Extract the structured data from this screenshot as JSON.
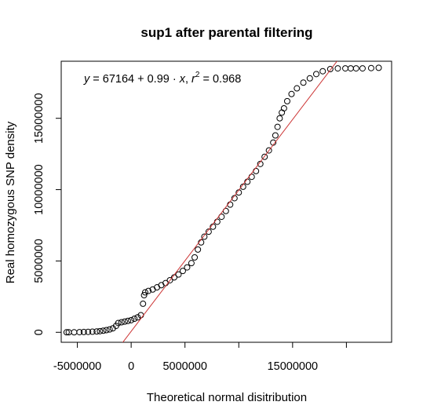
{
  "chart_data": {
    "type": "scatter",
    "title": "sup1 after parental filtering",
    "xlabel": "Theoretical normal disitribution",
    "ylabel": "Real homozygous SNP density",
    "xlim": [
      -6500000,
      24200000
    ],
    "ylim": [
      -700000,
      19000000
    ],
    "x_ticks": [
      -5000000,
      0,
      5000000,
      10000000,
      15000000,
      20000000
    ],
    "x_tick_labels": [
      "-5000000",
      "0",
      "5000000",
      "",
      "15000000",
      ""
    ],
    "y_ticks": [
      0,
      5000000,
      10000000,
      15000000
    ],
    "y_tick_labels": [
      "0",
      "5000000",
      "10000000",
      "15000000"
    ],
    "grid": false,
    "regression": {
      "intercept": 67164,
      "slope": 0.99,
      "r2": 0.968,
      "color": "#cc3333",
      "label": {
        "y": "y",
        "eq": " = 67164 + 0.99 · ",
        "x": "x",
        "comma": ",  ",
        "r": "r",
        "sup": "2",
        "rest": " = 0.968"
      }
    },
    "series": [
      {
        "marker": "open-circle",
        "color": "#000000",
        "points": [
          [
            -6000000,
            0
          ],
          [
            -5800000,
            0
          ],
          [
            -5300000,
            0
          ],
          [
            -4800000,
            10000
          ],
          [
            -4400000,
            20000
          ],
          [
            -4000000,
            30000
          ],
          [
            -3600000,
            40000
          ],
          [
            -3200000,
            60000
          ],
          [
            -2900000,
            80000
          ],
          [
            -2600000,
            110000
          ],
          [
            -2300000,
            150000
          ],
          [
            -2000000,
            200000
          ],
          [
            -1700000,
            280000
          ],
          [
            -1400000,
            450000
          ],
          [
            -1200000,
            650000
          ],
          [
            -900000,
            700000
          ],
          [
            -600000,
            750000
          ],
          [
            -300000,
            800000
          ],
          [
            0,
            850000
          ],
          [
            300000,
            950000
          ],
          [
            600000,
            1050000
          ],
          [
            900000,
            1200000
          ],
          [
            1100000,
            2000000
          ],
          [
            1200000,
            2600000
          ],
          [
            1300000,
            2800000
          ],
          [
            1600000,
            2900000
          ],
          [
            2000000,
            3000000
          ],
          [
            2400000,
            3150000
          ],
          [
            2800000,
            3300000
          ],
          [
            3200000,
            3450000
          ],
          [
            3600000,
            3650000
          ],
          [
            4000000,
            3850000
          ],
          [
            4400000,
            4050000
          ],
          [
            4800000,
            4300000
          ],
          [
            5200000,
            4550000
          ],
          [
            5600000,
            4850000
          ],
          [
            5900000,
            5250000
          ],
          [
            6200000,
            5800000
          ],
          [
            6500000,
            6300000
          ],
          [
            6800000,
            6700000
          ],
          [
            7200000,
            7050000
          ],
          [
            7600000,
            7400000
          ],
          [
            8000000,
            7750000
          ],
          [
            8400000,
            8100000
          ],
          [
            8800000,
            8500000
          ],
          [
            9200000,
            8950000
          ],
          [
            9600000,
            9400000
          ],
          [
            10000000,
            9800000
          ],
          [
            10400000,
            10200000
          ],
          [
            10800000,
            10550000
          ],
          [
            11200000,
            10900000
          ],
          [
            11600000,
            11300000
          ],
          [
            12000000,
            11800000
          ],
          [
            12400000,
            12300000
          ],
          [
            12800000,
            12750000
          ],
          [
            13200000,
            13300000
          ],
          [
            13400000,
            13800000
          ],
          [
            13600000,
            14400000
          ],
          [
            13800000,
            15000000
          ],
          [
            14000000,
            15400000
          ],
          [
            14200000,
            15700000
          ],
          [
            14500000,
            16200000
          ],
          [
            14900000,
            16700000
          ],
          [
            15400000,
            17100000
          ],
          [
            16000000,
            17500000
          ],
          [
            16600000,
            17800000
          ],
          [
            17200000,
            18100000
          ],
          [
            17800000,
            18300000
          ],
          [
            18500000,
            18450000
          ],
          [
            19200000,
            18500000
          ],
          [
            19900000,
            18500000
          ],
          [
            20400000,
            18500000
          ],
          [
            20900000,
            18500000
          ],
          [
            21500000,
            18500000
          ],
          [
            22300000,
            18520000
          ],
          [
            23000000,
            18540000
          ]
        ]
      }
    ]
  }
}
